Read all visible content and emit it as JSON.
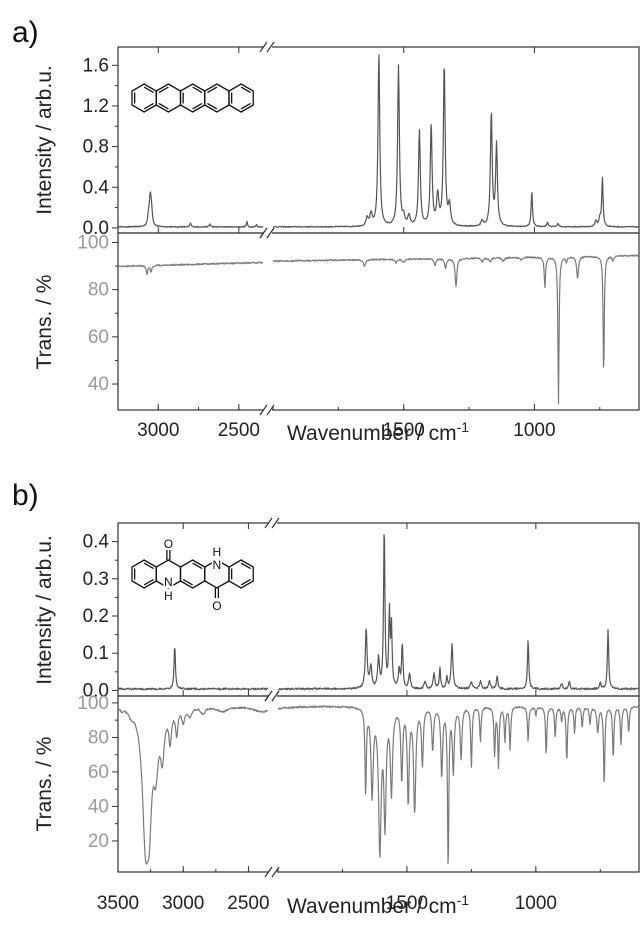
{
  "chart_data": [
    {
      "panel": "a)",
      "type": "line",
      "xlabel": "Wavenumber / cm",
      "xlabel_sup": "-1",
      "x_tick_labels": [
        "3000",
        "2500",
        "1500",
        "1000"
      ],
      "x_segments": [
        {
          "range": [
            3250,
            2350
          ]
        },
        {
          "range": [
            2000,
            600
          ]
        }
      ],
      "subplots": [
        {
          "name": "raman",
          "ylabel": "Intensity / arb.u.",
          "ylim": [
            -0.05,
            1.78
          ],
          "yticks": [
            {
              "v": 0.0,
              "label": "0.0"
            },
            {
              "v": 0.4,
              "label": "0.4"
            },
            {
              "v": 0.8,
              "label": "0.8"
            },
            {
              "v": 1.2,
              "label": "1.2"
            },
            {
              "v": 1.6,
              "label": "1.6"
            }
          ],
          "baseline": 0.01,
          "noise": 0.005,
          "peaks": [
            [
              3060,
              0.1,
              7
            ],
            [
              3050,
              0.27,
              6
            ],
            [
              3042,
              0.15,
              6
            ],
            [
              2800,
              0.04,
              4
            ],
            [
              2680,
              0.03,
              4
            ],
            [
              2450,
              0.05,
              4
            ],
            [
              2390,
              0.02,
              4
            ],
            [
              1640,
              0.08,
              5
            ],
            [
              1625,
              0.12,
              5
            ],
            [
              1595,
              1.7,
              4
            ],
            [
              1520,
              1.58,
              4
            ],
            [
              1500,
              0.08,
              5
            ],
            [
              1480,
              0.1,
              5
            ],
            [
              1440,
              0.95,
              4
            ],
            [
              1395,
              1.0,
              4
            ],
            [
              1370,
              0.3,
              5
            ],
            [
              1345,
              1.6,
              4
            ],
            [
              1325,
              0.2,
              5
            ],
            [
              1200,
              0.05,
              5
            ],
            [
              1165,
              1.12,
              4
            ],
            [
              1145,
              0.8,
              4
            ],
            [
              1010,
              0.35,
              3
            ],
            [
              950,
              0.04,
              4
            ],
            [
              910,
              0.03,
              4
            ],
            [
              765,
              0.06,
              4
            ],
            [
              750,
              0.08,
              4
            ],
            [
              740,
              0.48,
              3
            ]
          ]
        },
        {
          "name": "ir",
          "ylabel": "Trans. / %",
          "ylim": [
            29,
            104
          ],
          "yticks": [
            {
              "v": 40,
              "label": "40"
            },
            {
              "v": 60,
              "label": "60"
            },
            {
              "v": 80,
              "label": "80"
            },
            {
              "v": 100,
              "label": "100"
            }
          ],
          "baseline_start": 89.5,
          "baseline_end": 94.5,
          "noise": 0.3,
          "bands": [
            [
              3070,
              -3.5,
              6
            ],
            [
              3045,
              -2.5,
              6
            ],
            [
              1650,
              -2.5,
              5
            ],
            [
              1530,
              -1.5,
              5
            ],
            [
              1500,
              -1.5,
              5
            ],
            [
              1380,
              -3,
              4
            ],
            [
              1340,
              -4,
              4
            ],
            [
              1300,
              -12,
              4
            ],
            [
              1200,
              -1.5,
              5
            ],
            [
              1170,
              -1.5,
              5
            ],
            [
              1120,
              -1.5,
              5
            ],
            [
              1050,
              -1,
              5
            ],
            [
              960,
              -13,
              3
            ],
            [
              908,
              -62,
              2.5
            ],
            [
              878,
              -2,
              3
            ],
            [
              835,
              -9,
              4
            ],
            [
              735,
              -52,
              2.5
            ],
            [
              700,
              -2,
              3
            ]
          ]
        }
      ]
    },
    {
      "panel": "b)",
      "type": "line",
      "xlabel": "Wavenumber / cm",
      "xlabel_sup": "-1",
      "x_tick_labels": [
        "3500",
        "3000",
        "2500",
        "1500",
        "1000"
      ],
      "x_segments": [
        {
          "range": [
            3500,
            2350
          ]
        },
        {
          "range": [
            2000,
            600
          ]
        }
      ],
      "subplots": [
        {
          "name": "raman",
          "ylabel": "Intensity / arb.u.",
          "ylim": [
            -0.015,
            0.45
          ],
          "yticks": [
            {
              "v": 0.0,
              "label": "0.0"
            },
            {
              "v": 0.1,
              "label": "0.1"
            },
            {
              "v": 0.2,
              "label": "0.2"
            },
            {
              "v": 0.3,
              "label": "0.3"
            },
            {
              "v": 0.4,
              "label": "0.4"
            }
          ],
          "baseline": 0.004,
          "noise": 0.0025,
          "peaks": [
            [
              3065,
              0.12,
              6
            ],
            [
              1658,
              0.16,
              4
            ],
            [
              1640,
              0.06,
              4
            ],
            [
              1610,
              0.08,
              4
            ],
            [
              1588,
              0.44,
              3
            ],
            [
              1568,
              0.2,
              3
            ],
            [
              1560,
              0.16,
              3
            ],
            [
              1530,
              0.05,
              4
            ],
            [
              1518,
              0.12,
              3
            ],
            [
              1490,
              0.04,
              4
            ],
            [
              1430,
              0.02,
              4
            ],
            [
              1395,
              0.04,
              4
            ],
            [
              1372,
              0.055,
              3
            ],
            [
              1345,
              0.03,
              3
            ],
            [
              1325,
              0.12,
              4
            ],
            [
              1250,
              0.02,
              4
            ],
            [
              1215,
              0.02,
              4
            ],
            [
              1180,
              0.02,
              4
            ],
            [
              1150,
              0.035,
              3
            ],
            [
              1030,
              0.13,
              3
            ],
            [
              900,
              0.015,
              4
            ],
            [
              870,
              0.02,
              3
            ],
            [
              750,
              0.015,
              4
            ],
            [
              720,
              0.16,
              3
            ]
          ]
        },
        {
          "name": "ir",
          "ylabel": "Trans. / %",
          "ylim": [
            2,
            104
          ],
          "yticks": [
            {
              "v": 20,
              "label": "20"
            },
            {
              "v": 40,
              "label": "40"
            },
            {
              "v": 60,
              "label": "60"
            },
            {
              "v": 80,
              "label": "80"
            },
            {
              "v": 100,
              "label": "100"
            }
          ],
          "baseline_start": 99,
          "baseline_end": 98,
          "noise": 0.5,
          "bands": [
            [
              3470,
              -2,
              10
            ],
            [
              3400,
              -3,
              20
            ],
            [
              3290,
              -70,
              28
            ],
            [
              3260,
              -48,
              22
            ],
            [
              3210,
              -30,
              22
            ],
            [
              3160,
              -25,
              18
            ],
            [
              3100,
              -18,
              12
            ],
            [
              3050,
              -15,
              10
            ],
            [
              3000,
              -8,
              12
            ],
            [
              2950,
              -5,
              20
            ],
            [
              2850,
              -4,
              20
            ],
            [
              2700,
              -3,
              60
            ],
            [
              2400,
              -3,
              80
            ],
            [
              2250,
              -2,
              60
            ],
            [
              2150,
              -3,
              50
            ],
            [
              2050,
              -3,
              50
            ],
            [
              1660,
              -50,
              3
            ],
            [
              1635,
              -50,
              5
            ],
            [
              1605,
              -82,
              6
            ],
            [
              1585,
              -65,
              5
            ],
            [
              1560,
              -48,
              5
            ],
            [
              1520,
              -42,
              4
            ],
            [
              1495,
              -55,
              4
            ],
            [
              1470,
              -60,
              5
            ],
            [
              1440,
              -33,
              4
            ],
            [
              1400,
              -25,
              4
            ],
            [
              1365,
              -40,
              4
            ],
            [
              1340,
              -93,
              3
            ],
            [
              1320,
              -38,
              4
            ],
            [
              1290,
              -30,
              4
            ],
            [
              1250,
              -35,
              3
            ],
            [
              1215,
              -20,
              3
            ],
            [
              1160,
              -28,
              3
            ],
            [
              1145,
              -35,
              3
            ],
            [
              1120,
              -20,
              3
            ],
            [
              1100,
              -25,
              3
            ],
            [
              1030,
              -20,
              3
            ],
            [
              1000,
              -5,
              3
            ],
            [
              960,
              -28,
              3
            ],
            [
              925,
              -18,
              3
            ],
            [
              900,
              -8,
              3
            ],
            [
              880,
              -32,
              3
            ],
            [
              850,
              -15,
              3
            ],
            [
              820,
              -12,
              3
            ],
            [
              790,
              -10,
              3
            ],
            [
              760,
              -15,
              4
            ],
            [
              735,
              -45,
              3
            ],
            [
              700,
              -30,
              3
            ],
            [
              670,
              -22,
              3
            ],
            [
              640,
              -15,
              3
            ]
          ]
        }
      ]
    }
  ]
}
